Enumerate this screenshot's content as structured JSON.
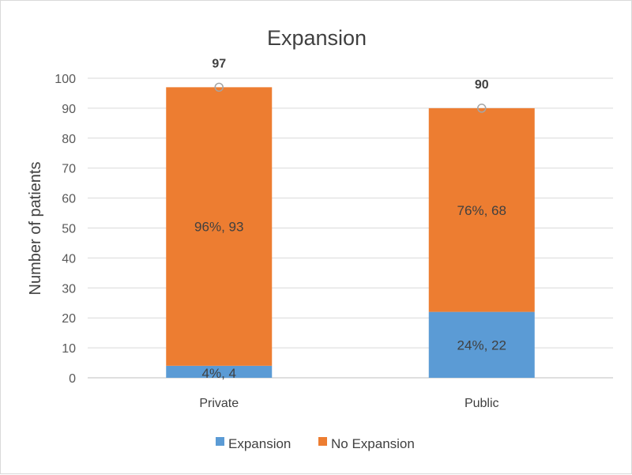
{
  "chart_data": {
    "type": "bar",
    "stacked": true,
    "title": "Expansion",
    "xlabel": "",
    "ylabel": "Number of patients",
    "ylim": [
      0,
      100
    ],
    "yticks": [
      0,
      10,
      20,
      30,
      40,
      50,
      60,
      70,
      80,
      90,
      100
    ],
    "grid": true,
    "legend_position": "bottom",
    "categories": [
      "Private",
      "Public"
    ],
    "series": [
      {
        "name": "Expansion",
        "color": "#5b9bd5",
        "values": [
          4,
          22
        ],
        "labels": [
          "4%, 4",
          "24%, 22"
        ]
      },
      {
        "name": "No Expansion",
        "color": "#ed7d31",
        "values": [
          93,
          68
        ],
        "labels": [
          "96%, 93",
          "76%, 68"
        ]
      }
    ],
    "totals": [
      97,
      90
    ],
    "total_labels": [
      "97",
      "90"
    ]
  }
}
